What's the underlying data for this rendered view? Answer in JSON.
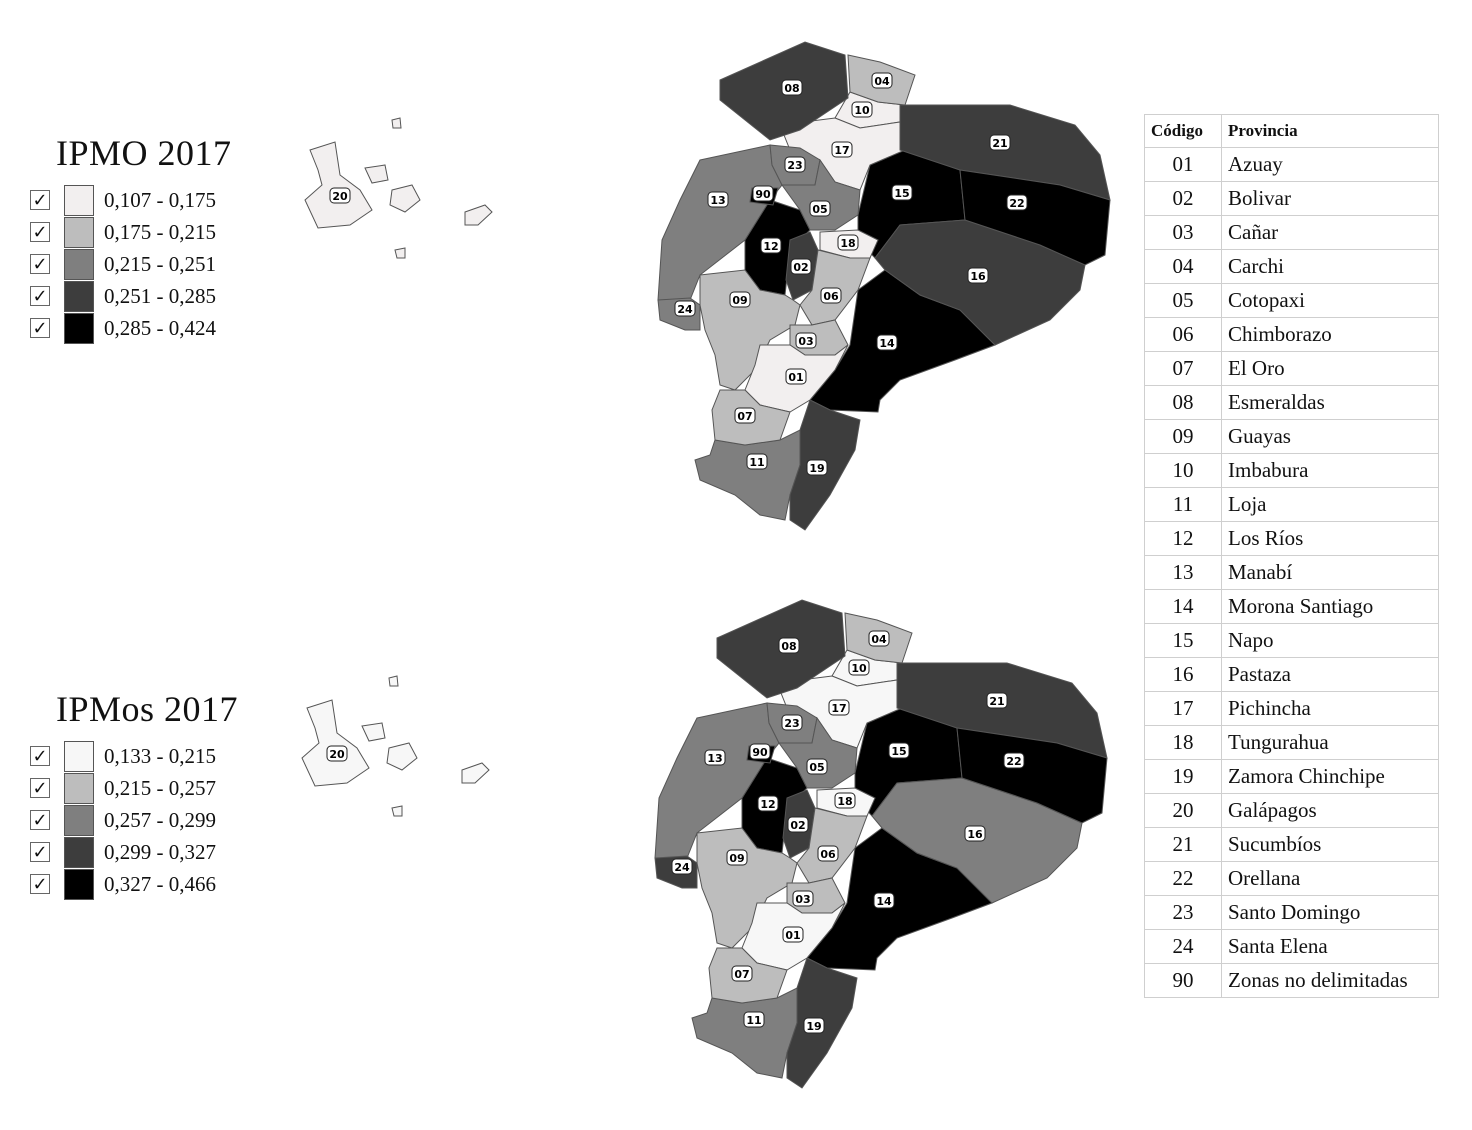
{
  "maps": [
    {
      "title": "IPMO 2017",
      "legend": [
        {
          "range": "0,107 - 0,175",
          "color": "#f2efef"
        },
        {
          "range": "0,175 - 0,215",
          "color": "#bdbdbd"
        },
        {
          "range": "0,215 - 0,251",
          "color": "#7f7f7f"
        },
        {
          "range": "0,251 - 0,285",
          "color": "#3d3d3d"
        },
        {
          "range": "0,285 - 0,424",
          "color": "#000000"
        }
      ],
      "province_class": {
        "01": 0,
        "02": 3,
        "03": 1,
        "04": 1,
        "05": 2,
        "06": 1,
        "07": 1,
        "08": 3,
        "09": 1,
        "10": 0,
        "11": 2,
        "12": 4,
        "13": 2,
        "14": 4,
        "15": 4,
        "16": 3,
        "17": 0,
        "18": 0,
        "19": 3,
        "20": 0,
        "21": 3,
        "22": 4,
        "23": 2,
        "24": 2,
        "90": 4
      }
    },
    {
      "title": "IPMos 2017",
      "legend": [
        {
          "range": "0,133 - 0,215",
          "color": "#f7f7f7"
        },
        {
          "range": "0,215 - 0,257",
          "color": "#bdbdbd"
        },
        {
          "range": "0,257 - 0,299",
          "color": "#7f7f7f"
        },
        {
          "range": "0,299 - 0,327",
          "color": "#3d3d3d"
        },
        {
          "range": "0,327 - 0,466",
          "color": "#000000"
        }
      ],
      "province_class": {
        "01": 0,
        "02": 3,
        "03": 1,
        "04": 1,
        "05": 2,
        "06": 1,
        "07": 1,
        "08": 3,
        "09": 1,
        "10": 0,
        "11": 2,
        "12": 4,
        "13": 2,
        "14": 4,
        "15": 4,
        "16": 2,
        "17": 0,
        "18": 0,
        "19": 3,
        "20": 0,
        "21": 3,
        "22": 4,
        "23": 2,
        "24": 3,
        "90": 4
      }
    }
  ],
  "check_mark": "✓",
  "table": {
    "header_code": "Código",
    "header_province": "Provincia",
    "rows": [
      {
        "code": "01",
        "name": "Azuay"
      },
      {
        "code": "02",
        "name": "Bolivar"
      },
      {
        "code": "03",
        "name": "Cañar"
      },
      {
        "code": "04",
        "name": "Carchi"
      },
      {
        "code": "05",
        "name": "Cotopaxi"
      },
      {
        "code": "06",
        "name": "Chimborazo"
      },
      {
        "code": "07",
        "name": "El Oro"
      },
      {
        "code": "08",
        "name": "Esmeraldas"
      },
      {
        "code": "09",
        "name": "Guayas"
      },
      {
        "code": "10",
        "name": "Imbabura"
      },
      {
        "code": "11",
        "name": "Loja"
      },
      {
        "code": "12",
        "name": "Los Ríos"
      },
      {
        "code": "13",
        "name": "Manabí"
      },
      {
        "code": "14",
        "name": "Morona Santiago"
      },
      {
        "code": "15",
        "name": "Napo"
      },
      {
        "code": "16",
        "name": "Pastaza"
      },
      {
        "code": "17",
        "name": "Pichincha"
      },
      {
        "code": "18",
        "name": "Tungurahua"
      },
      {
        "code": "19",
        "name": "Zamora Chinchipe"
      },
      {
        "code": "20",
        "name": "Galápagos"
      },
      {
        "code": "21",
        "name": "Sucumbíos"
      },
      {
        "code": "22",
        "name": "Orellana"
      },
      {
        "code": "23",
        "name": "Santo Domingo"
      },
      {
        "code": "24",
        "name": "Santa Elena"
      },
      {
        "code": "90",
        "name": "Zonas no delimitadas"
      }
    ]
  }
}
